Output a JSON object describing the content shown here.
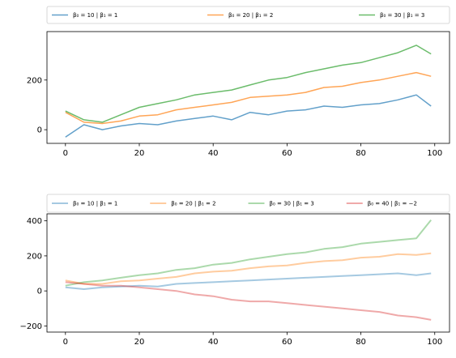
{
  "chart_data": [
    {
      "type": "line",
      "xlim": [
        -5,
        104
      ],
      "ylim": [
        -55,
        395
      ],
      "xticks": [
        0,
        20,
        40,
        60,
        80,
        100
      ],
      "xtick_labels": [
        "0",
        "20",
        "40",
        "60",
        "80",
        "100"
      ],
      "yticks": [
        0,
        200
      ],
      "ytick_labels": [
        "0",
        "200"
      ],
      "legend_position": "above, spanning width",
      "series": [
        {
          "name": "β₀ = 10 | β₁ = 1",
          "color": "#1f77b4",
          "opacity": 0.7,
          "x": [
            0,
            5,
            10,
            15,
            20,
            25,
            30,
            35,
            40,
            45,
            50,
            55,
            60,
            65,
            70,
            75,
            80,
            85,
            90,
            95,
            99
          ],
          "y": [
            -30,
            20,
            0,
            15,
            25,
            20,
            35,
            45,
            55,
            40,
            70,
            60,
            75,
            80,
            95,
            90,
            100,
            105,
            120,
            140,
            95
          ]
        },
        {
          "name": "β₀ = 20 | β₁ = 2",
          "color": "#ff7f0e",
          "opacity": 0.7,
          "x": [
            0,
            5,
            10,
            15,
            20,
            25,
            30,
            35,
            40,
            45,
            50,
            55,
            60,
            65,
            70,
            75,
            80,
            85,
            90,
            95,
            99
          ],
          "y": [
            70,
            30,
            25,
            35,
            55,
            60,
            80,
            90,
            100,
            110,
            130,
            135,
            140,
            150,
            170,
            175,
            190,
            200,
            215,
            230,
            215
          ]
        },
        {
          "name": "β₀ = 30 | β₁ = 3",
          "color": "#2ca02c",
          "opacity": 0.7,
          "x": [
            0,
            5,
            10,
            15,
            20,
            25,
            30,
            35,
            40,
            45,
            50,
            55,
            60,
            65,
            70,
            75,
            80,
            85,
            90,
            95,
            99
          ],
          "y": [
            75,
            40,
            30,
            60,
            90,
            105,
            120,
            140,
            150,
            160,
            180,
            200,
            210,
            230,
            245,
            260,
            270,
            290,
            310,
            340,
            305
          ]
        }
      ]
    },
    {
      "type": "line",
      "xlim": [
        -5,
        104
      ],
      "ylim": [
        -235,
        440
      ],
      "xticks": [
        0,
        20,
        40,
        60,
        80,
        100
      ],
      "xtick_labels": [
        "0",
        "20",
        "40",
        "60",
        "80",
        "100"
      ],
      "yticks": [
        -200,
        0,
        200,
        400
      ],
      "ytick_labels": [
        "−200",
        "0",
        "200",
        "400"
      ],
      "legend_position": "above, spanning width",
      "series": [
        {
          "name": "β₀ = 10 | β₁ = 1",
          "color": "#1f77b4",
          "opacity": 0.4,
          "x": [
            0,
            5,
            10,
            15,
            20,
            25,
            30,
            35,
            40,
            45,
            50,
            55,
            60,
            65,
            70,
            75,
            80,
            85,
            90,
            95,
            99
          ],
          "y": [
            20,
            10,
            20,
            25,
            30,
            25,
            40,
            45,
            50,
            55,
            60,
            65,
            70,
            75,
            80,
            85,
            90,
            95,
            100,
            90,
            100
          ]
        },
        {
          "name": "β₀ = 20 | β₁ = 2",
          "color": "#ff7f0e",
          "opacity": 0.4,
          "x": [
            0,
            5,
            10,
            15,
            20,
            25,
            30,
            35,
            40,
            45,
            50,
            55,
            60,
            65,
            70,
            75,
            80,
            85,
            90,
            95,
            99
          ],
          "y": [
            60,
            40,
            40,
            55,
            60,
            70,
            80,
            100,
            110,
            115,
            130,
            140,
            145,
            160,
            170,
            175,
            190,
            195,
            210,
            205,
            215
          ]
        },
        {
          "name": "β₀ = 30 | β₁ = 3",
          "color": "#2ca02c",
          "opacity": 0.4,
          "x": [
            0,
            5,
            10,
            15,
            20,
            25,
            30,
            35,
            40,
            45,
            50,
            55,
            60,
            65,
            70,
            75,
            80,
            85,
            90,
            95,
            99
          ],
          "y": [
            30,
            50,
            60,
            75,
            90,
            100,
            120,
            130,
            150,
            160,
            180,
            195,
            210,
            220,
            240,
            250,
            270,
            280,
            290,
            300,
            405
          ]
        },
        {
          "name": "β₀ = 40 | β₁ = −2",
          "color": "#d62728",
          "opacity": 0.4,
          "x": [
            0,
            5,
            10,
            15,
            20,
            25,
            30,
            35,
            40,
            45,
            50,
            55,
            60,
            65,
            70,
            75,
            80,
            85,
            90,
            95,
            99
          ],
          "y": [
            50,
            40,
            30,
            30,
            20,
            10,
            0,
            -20,
            -30,
            -50,
            -60,
            -60,
            -70,
            -80,
            -90,
            -100,
            -110,
            -120,
            -140,
            -150,
            -165
          ]
        }
      ]
    }
  ]
}
